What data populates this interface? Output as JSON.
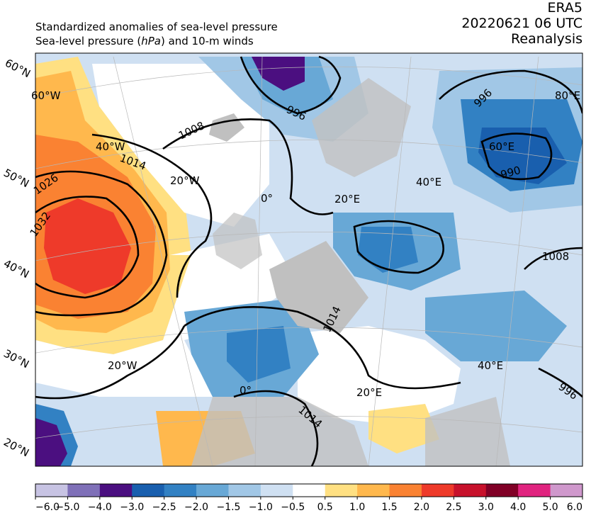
{
  "header": {
    "title_line1": "Standardized anomalies of sea-level pressure",
    "title_line2_pre": "Sea-level pressure (",
    "title_line2_unit": "hPa",
    "title_line2_post": ") and 10-m winds",
    "dataset": "ERA5",
    "datetime": "20220621 06 UTC",
    "product": "Reanalysis"
  },
  "graticule_labels": {
    "lat": [
      "60°N",
      "50°N",
      "40°N",
      "30°N",
      "20°N"
    ],
    "lon_inner": [
      "60°W",
      "40°W",
      "20°W",
      "0°",
      "20°E",
      "40°E",
      "60°E",
      "80°E",
      "20°W",
      "0°",
      "20°E",
      "40°E"
    ]
  },
  "isobar_labels": [
    "1026",
    "1032",
    "1014",
    "1008",
    "996",
    "996",
    "990",
    "1008",
    "1014",
    "996",
    "1014"
  ],
  "colorbar": {
    "ticks": [
      "−6.0",
      "−5.0",
      "−4.0",
      "−3.0",
      "−2.5",
      "−2.0",
      "−1.5",
      "−1.0",
      "−0.5",
      "0.5",
      "1.0",
      "1.5",
      "2.0",
      "2.5",
      "3.0",
      "4.0",
      "5.0",
      "6.0"
    ],
    "colors": [
      "#c7c3e3",
      "#7f70b8",
      "#4b0f80",
      "#195fae",
      "#3281c3",
      "#68a8d6",
      "#a1c7e6",
      "#cfe0f2",
      "#ffffff",
      "#ffe082",
      "#ffb84d",
      "#fa8232",
      "#ee3a2a",
      "#c7112b",
      "#800026",
      "#e0237f",
      "#cf98cc"
    ]
  },
  "colors": {
    "land": "#c0c0c0",
    "ocean_neutral": "#ffffff",
    "contour": "#000000"
  }
}
